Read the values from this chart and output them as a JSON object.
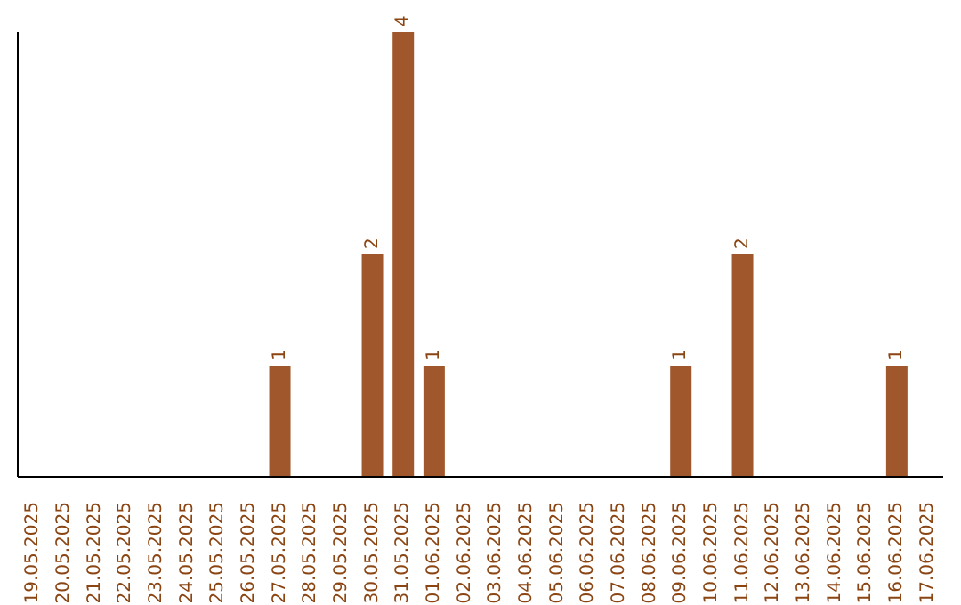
{
  "chart_data": {
    "type": "bar",
    "categories": [
      "19.05.2025",
      "20.05.2025",
      "21.05.2025",
      "22.05.2025",
      "23.05.2025",
      "24.05.2025",
      "25.05.2025",
      "26.05.2025",
      "27.05.2025",
      "28.05.2025",
      "29.05.2025",
      "30.05.2025",
      "31.05.2025",
      "01.06.2025",
      "02.06.2025",
      "03.06.2025",
      "04.06.2025",
      "05.06.2025",
      "06.06.2025",
      "07.06.2025",
      "08.06.2025",
      "09.06.2025",
      "10.06.2025",
      "11.06.2025",
      "12.06.2025",
      "13.06.2025",
      "14.06.2025",
      "15.06.2025",
      "16.06.2025",
      "17.06.2025"
    ],
    "values": [
      0,
      0,
      0,
      0,
      0,
      0,
      0,
      0,
      1,
      0,
      0,
      2,
      4,
      1,
      0,
      0,
      0,
      0,
      0,
      0,
      0,
      1,
      0,
      2,
      0,
      0,
      0,
      0,
      1,
      0
    ],
    "value_labels": [
      null,
      null,
      null,
      null,
      null,
      null,
      null,
      null,
      "1",
      null,
      null,
      "2",
      "4",
      "1",
      null,
      null,
      null,
      null,
      null,
      null,
      null,
      "1",
      null,
      "2",
      null,
      null,
      null,
      null,
      "1",
      null
    ],
    "color": "#a0572b",
    "tick_labels": "x"
  }
}
